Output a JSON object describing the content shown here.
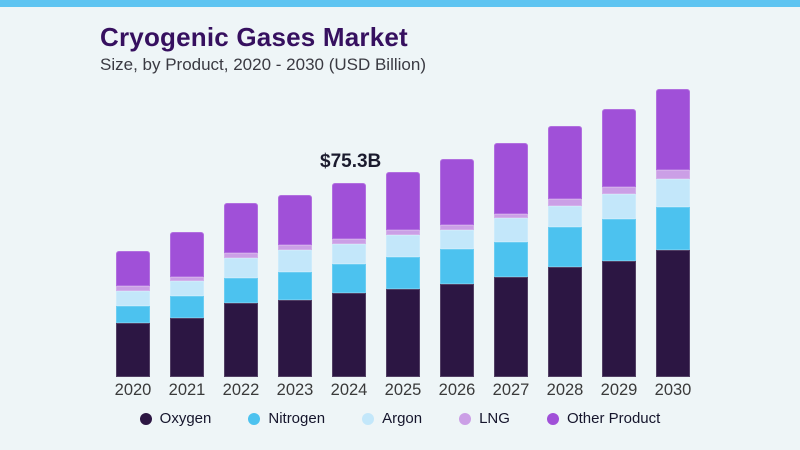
{
  "page": {
    "background_color": "#eef5f7",
    "top_stripe_color": "#5ec4f1"
  },
  "header": {
    "title": "Cryogenic Gases Market",
    "title_color": "#36105f",
    "subtitle": "Size, by Product, 2020 - 2030 (USD Billion)"
  },
  "annotation": {
    "text": "$75.3B",
    "year": "2024"
  },
  "chart_data": {
    "type": "bar",
    "stacked": true,
    "title": "Cryogenic Gases Market",
    "subtitle": "Size, by Product, 2020 - 2030 (USD Billion)",
    "unit": "USD Billion",
    "categories": [
      "2020",
      "2021",
      "2022",
      "2023",
      "2024",
      "2025",
      "2026",
      "2027",
      "2028",
      "2029",
      "2030"
    ],
    "series": [
      {
        "name": "Oxygen",
        "color": "#2c1643",
        "values": [
          20.8,
          23.0,
          28.9,
          30.1,
          32.5,
          34.3,
          36.2,
          38.8,
          42.7,
          45.2,
          49.5
        ]
      },
      {
        "name": "Nitrogen",
        "color": "#4cc2ef",
        "values": [
          6.8,
          8.4,
          9.7,
          10.7,
          11.5,
          12.3,
          13.6,
          13.7,
          15.5,
          16.2,
          16.5
        ]
      },
      {
        "name": "Argon",
        "color": "#c3e7fa",
        "values": [
          5.8,
          6.0,
          7.8,
          8.7,
          7.5,
          8.4,
          7.1,
          9.1,
          8.4,
          9.7,
          11.0
        ]
      },
      {
        "name": "LNG",
        "color": "#cb9fe6",
        "values": [
          1.9,
          1.6,
          1.9,
          1.9,
          2.2,
          1.9,
          2.2,
          1.9,
          2.6,
          2.6,
          3.5
        ]
      },
      {
        "name": "Other Product",
        "color": "#a050d8",
        "values": [
          13.6,
          17.2,
          19.1,
          19.4,
          21.6,
          22.6,
          25.6,
          27.2,
          28.4,
          30.4,
          31.4
        ]
      }
    ],
    "totals": [
      48.9,
      56.2,
      67.4,
      70.8,
      75.3,
      79.5,
      84.7,
      90.7,
      97.6,
      104.1,
      111.9
    ],
    "annotations": [
      {
        "category": "2024",
        "text": "$75.3B"
      }
    ],
    "axes": {
      "x_labels": true,
      "y_labels": false,
      "gridlines": false
    },
    "legend_position": "bottom"
  }
}
